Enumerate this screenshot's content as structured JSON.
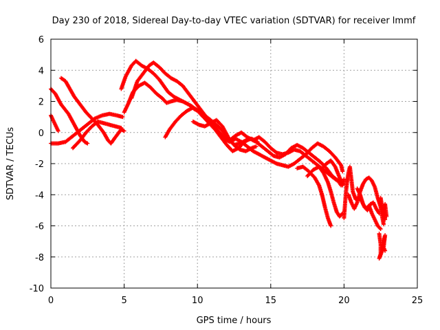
{
  "chart_data": {
    "type": "scatter",
    "title": "Day 230 of 2018, Sidereal Day-to-day VTEC variation (SDTVAR) for receiver lmmf",
    "xlabel": "GPS time / hours",
    "ylabel": "SDTVAR / TECUs",
    "xlim": [
      0,
      25
    ],
    "ylim": [
      -10,
      6
    ],
    "xticks": [
      0,
      5,
      10,
      15,
      20,
      25
    ],
    "yticks": [
      -10,
      -8,
      -6,
      -4,
      -2,
      0,
      2,
      4,
      6
    ],
    "xtick_labels": [
      "0",
      "5",
      "10",
      "15",
      "20",
      "25"
    ],
    "ytick_labels": [
      "-10",
      "-8",
      "-6",
      "-4",
      "-2",
      "0",
      "2",
      "4",
      "6"
    ],
    "grid": true,
    "marker": "+",
    "color": "#ff0000",
    "series": [
      {
        "name": "track-1",
        "points": [
          [
            0.0,
            2.8
          ],
          [
            0.3,
            2.5
          ],
          [
            0.7,
            1.8
          ],
          [
            1.2,
            1.2
          ],
          [
            1.6,
            0.5
          ],
          [
            2.0,
            -0.2
          ],
          [
            2.3,
            -0.6
          ],
          [
            2.5,
            -0.7
          ]
        ]
      },
      {
        "name": "track-2",
        "points": [
          [
            0.0,
            1.1
          ],
          [
            0.2,
            0.7
          ],
          [
            0.4,
            0.3
          ],
          [
            0.5,
            0.1
          ]
        ]
      },
      {
        "name": "track-3",
        "points": [
          [
            0.0,
            -0.7
          ],
          [
            0.5,
            -0.7
          ],
          [
            1.0,
            -0.6
          ],
          [
            1.4,
            -0.3
          ],
          [
            1.8,
            0.0
          ],
          [
            2.2,
            0.3
          ],
          [
            2.6,
            0.6
          ],
          [
            3.0,
            0.9
          ],
          [
            3.5,
            1.1
          ],
          [
            4.0,
            1.2
          ],
          [
            4.5,
            1.1
          ],
          [
            4.9,
            1.0
          ]
        ]
      },
      {
        "name": "track-4",
        "points": [
          [
            0.7,
            3.5
          ],
          [
            1.0,
            3.3
          ],
          [
            1.3,
            2.8
          ],
          [
            1.6,
            2.3
          ],
          [
            2.0,
            1.8
          ],
          [
            2.4,
            1.3
          ],
          [
            2.8,
            0.9
          ],
          [
            3.2,
            0.5
          ],
          [
            3.6,
            0.0
          ],
          [
            3.9,
            -0.5
          ],
          [
            4.1,
            -0.7
          ],
          [
            4.4,
            -0.3
          ],
          [
            4.8,
            0.2
          ],
          [
            5.0,
            0.1
          ]
        ]
      },
      {
        "name": "track-5",
        "points": [
          [
            1.5,
            -1.0
          ],
          [
            2.0,
            -0.5
          ],
          [
            2.4,
            0.0
          ],
          [
            2.8,
            0.4
          ],
          [
            3.2,
            0.7
          ],
          [
            3.6,
            0.6
          ],
          [
            4.0,
            0.5
          ],
          [
            4.4,
            0.4
          ],
          [
            4.8,
            0.3
          ]
        ]
      },
      {
        "name": "track-6",
        "points": [
          [
            4.8,
            2.8
          ],
          [
            5.1,
            3.6
          ],
          [
            5.5,
            4.3
          ],
          [
            5.8,
            4.6
          ],
          [
            6.2,
            4.3
          ],
          [
            6.6,
            4.1
          ],
          [
            7.0,
            3.8
          ],
          [
            7.4,
            3.4
          ],
          [
            7.7,
            3.0
          ],
          [
            8.0,
            2.6
          ],
          [
            8.4,
            2.3
          ],
          [
            8.8,
            2.1
          ],
          [
            9.2,
            1.9
          ],
          [
            9.6,
            1.7
          ],
          [
            10.0,
            1.4
          ],
          [
            10.4,
            1.0
          ],
          [
            10.8,
            0.6
          ],
          [
            11.2,
            0.2
          ],
          [
            11.6,
            -0.3
          ],
          [
            12.0,
            -0.8
          ],
          [
            12.4,
            -1.2
          ],
          [
            12.8,
            -1.0
          ],
          [
            13.2,
            -0.6
          ],
          [
            13.6,
            -0.4
          ],
          [
            14.0,
            -0.6
          ],
          [
            14.4,
            -0.9
          ],
          [
            14.8,
            -1.2
          ],
          [
            15.2,
            -1.5
          ],
          [
            15.6,
            -1.6
          ],
          [
            16.0,
            -1.4
          ],
          [
            16.4,
            -1.0
          ],
          [
            16.8,
            -0.8
          ],
          [
            17.2,
            -1.0
          ],
          [
            17.6,
            -1.3
          ],
          [
            18.0,
            -1.6
          ],
          [
            18.4,
            -1.9
          ],
          [
            18.8,
            -2.3
          ],
          [
            19.2,
            -2.8
          ],
          [
            19.6,
            -3.1
          ],
          [
            19.8,
            -3.4
          ]
        ]
      },
      {
        "name": "track-7",
        "points": [
          [
            5.0,
            1.3
          ],
          [
            5.3,
            1.9
          ],
          [
            5.6,
            2.6
          ],
          [
            6.0,
            3.0
          ],
          [
            6.4,
            3.2
          ],
          [
            6.8,
            2.9
          ],
          [
            7.2,
            2.5
          ],
          [
            7.6,
            2.2
          ],
          [
            7.9,
            1.9
          ],
          [
            8.2,
            2.0
          ],
          [
            8.6,
            2.1
          ],
          [
            9.0,
            2.0
          ],
          [
            9.4,
            1.8
          ],
          [
            9.8,
            1.5
          ],
          [
            10.2,
            1.3
          ],
          [
            10.6,
            1.0
          ],
          [
            11.0,
            0.6
          ],
          [
            11.4,
            0.1
          ],
          [
            11.8,
            -0.3
          ],
          [
            12.2,
            -0.5
          ],
          [
            12.6,
            -0.2
          ],
          [
            13.0,
            0.0
          ],
          [
            13.4,
            -0.3
          ],
          [
            13.8,
            -0.5
          ],
          [
            14.2,
            -0.3
          ],
          [
            14.6,
            -0.6
          ],
          [
            15.0,
            -1.0
          ],
          [
            15.4,
            -1.3
          ],
          [
            15.8,
            -1.4
          ],
          [
            16.2,
            -1.3
          ],
          [
            16.6,
            -1.1
          ],
          [
            17.0,
            -1.2
          ],
          [
            17.4,
            -1.5
          ],
          [
            17.8,
            -1.8
          ],
          [
            18.2,
            -2.1
          ],
          [
            18.6,
            -2.4
          ],
          [
            19.0,
            -2.7
          ],
          [
            19.4,
            -3.0
          ],
          [
            19.7,
            -3.2
          ]
        ]
      },
      {
        "name": "track-8",
        "points": [
          [
            5.5,
            2.2
          ],
          [
            5.9,
            3.3
          ],
          [
            6.3,
            3.8
          ],
          [
            6.7,
            4.3
          ],
          [
            7.0,
            4.5
          ],
          [
            7.4,
            4.2
          ],
          [
            7.8,
            3.8
          ],
          [
            8.2,
            3.5
          ],
          [
            8.6,
            3.3
          ],
          [
            9.0,
            3.0
          ],
          [
            9.4,
            2.5
          ],
          [
            9.8,
            2.0
          ],
          [
            10.2,
            1.5
          ],
          [
            10.6,
            1.0
          ],
          [
            11.0,
            0.5
          ],
          [
            11.4,
            0.0
          ],
          [
            11.8,
            -0.4
          ],
          [
            12.2,
            -0.6
          ],
          [
            12.6,
            -0.4
          ],
          [
            13.0,
            -0.6
          ],
          [
            13.4,
            -0.9
          ],
          [
            13.8,
            -1.2
          ],
          [
            14.2,
            -1.4
          ],
          [
            14.6,
            -1.6
          ],
          [
            15.0,
            -1.8
          ],
          [
            15.4,
            -2.0
          ],
          [
            15.8,
            -2.1
          ],
          [
            16.2,
            -2.2
          ],
          [
            16.6,
            -2.0
          ],
          [
            17.0,
            -1.7
          ],
          [
            17.4,
            -1.4
          ],
          [
            17.8,
            -1.0
          ],
          [
            18.2,
            -0.7
          ],
          [
            18.6,
            -0.9
          ],
          [
            19.0,
            -1.2
          ],
          [
            19.4,
            -1.6
          ],
          [
            19.8,
            -2.1
          ],
          [
            19.9,
            -2.5
          ]
        ]
      },
      {
        "name": "track-9",
        "points": [
          [
            7.8,
            -0.3
          ],
          [
            8.1,
            0.2
          ],
          [
            8.5,
            0.7
          ],
          [
            8.9,
            1.1
          ],
          [
            9.3,
            1.4
          ],
          [
            9.7,
            1.6
          ],
          [
            10.1,
            1.4
          ],
          [
            10.5,
            1.1
          ],
          [
            10.9,
            0.8
          ],
          [
            11.3,
            0.5
          ],
          [
            11.7,
            0.1
          ],
          [
            12.1,
            -0.4
          ],
          [
            12.5,
            -0.8
          ],
          [
            12.9,
            -1.1
          ],
          [
            13.3,
            -1.2
          ],
          [
            13.7,
            -1.0
          ],
          [
            14.0,
            -0.9
          ]
        ]
      },
      {
        "name": "track-10",
        "points": [
          [
            9.7,
            0.7
          ],
          [
            10.1,
            0.5
          ],
          [
            10.5,
            0.4
          ],
          [
            10.9,
            0.6
          ],
          [
            11.3,
            0.8
          ],
          [
            11.7,
            0.4
          ],
          [
            12.1,
            -0.3
          ],
          [
            12.5,
            -0.8
          ],
          [
            12.9,
            -0.7
          ],
          [
            13.3,
            -0.5
          ],
          [
            13.7,
            -0.4
          ],
          [
            14.1,
            -0.6
          ]
        ]
      },
      {
        "name": "track-11",
        "points": [
          [
            16.8,
            -2.3
          ],
          [
            17.2,
            -2.2
          ],
          [
            17.6,
            -2.5
          ],
          [
            18.0,
            -2.9
          ],
          [
            18.3,
            -3.4
          ],
          [
            18.5,
            -4.0
          ],
          [
            18.7,
            -4.8
          ],
          [
            18.9,
            -5.5
          ],
          [
            19.1,
            -6.0
          ]
        ]
      },
      {
        "name": "track-12",
        "points": [
          [
            17.5,
            -2.8
          ],
          [
            17.9,
            -2.4
          ],
          [
            18.3,
            -2.2
          ],
          [
            18.6,
            -2.6
          ],
          [
            18.9,
            -3.2
          ],
          [
            19.1,
            -3.8
          ],
          [
            19.3,
            -4.5
          ],
          [
            19.5,
            -5.1
          ],
          [
            19.7,
            -5.4
          ],
          [
            19.9,
            -5.2
          ]
        ]
      },
      {
        "name": "track-13",
        "points": [
          [
            18.5,
            -2.3
          ],
          [
            18.8,
            -2.0
          ],
          [
            19.1,
            -1.8
          ],
          [
            19.4,
            -2.2
          ],
          [
            19.7,
            -2.9
          ],
          [
            19.9,
            -3.4
          ],
          [
            20.0,
            -3.0
          ]
        ]
      },
      {
        "name": "track-14",
        "points": [
          [
            20.0,
            -5.5
          ],
          [
            20.1,
            -4.2
          ],
          [
            20.2,
            -3.2
          ],
          [
            20.3,
            -2.6
          ],
          [
            20.4,
            -2.2
          ],
          [
            20.5,
            -3.0
          ],
          [
            20.6,
            -3.8
          ],
          [
            20.8,
            -4.3
          ],
          [
            21.0,
            -4.2
          ],
          [
            21.2,
            -4.4
          ],
          [
            21.4,
            -4.8
          ],
          [
            21.6,
            -5.0
          ],
          [
            21.8,
            -4.6
          ],
          [
            22.0,
            -4.5
          ],
          [
            22.2,
            -4.9
          ],
          [
            22.4,
            -5.2
          ]
        ]
      },
      {
        "name": "track-15",
        "points": [
          [
            20.3,
            -4.0
          ],
          [
            20.5,
            -4.5
          ],
          [
            20.7,
            -4.9
          ],
          [
            20.9,
            -4.5
          ],
          [
            21.1,
            -3.8
          ],
          [
            21.3,
            -3.3
          ],
          [
            21.5,
            -3.0
          ],
          [
            21.7,
            -2.9
          ],
          [
            21.9,
            -3.1
          ],
          [
            22.1,
            -3.5
          ],
          [
            22.3,
            -4.2
          ],
          [
            22.5,
            -4.8
          ],
          [
            22.6,
            -5.4
          ],
          [
            22.7,
            -5.9
          ]
        ]
      },
      {
        "name": "track-16",
        "points": [
          [
            20.9,
            -3.6
          ],
          [
            21.1,
            -4.0
          ],
          [
            21.3,
            -4.6
          ],
          [
            21.5,
            -4.9
          ],
          [
            21.7,
            -4.7
          ],
          [
            21.9,
            -5.2
          ],
          [
            22.1,
            -5.6
          ],
          [
            22.3,
            -6.0
          ],
          [
            22.5,
            -6.2
          ]
        ]
      },
      {
        "name": "track-17",
        "points": [
          [
            22.4,
            -6.5
          ],
          [
            22.5,
            -7.2
          ],
          [
            22.5,
            -7.8
          ],
          [
            22.4,
            -8.1
          ],
          [
            22.6,
            -7.6
          ],
          [
            22.7,
            -7.0
          ],
          [
            22.8,
            -6.6
          ],
          [
            22.7,
            -7.4
          ],
          [
            22.8,
            -7.6
          ]
        ]
      },
      {
        "name": "track-18",
        "points": [
          [
            22.5,
            -4.2
          ],
          [
            22.6,
            -4.8
          ],
          [
            22.7,
            -5.4
          ],
          [
            22.8,
            -5.6
          ],
          [
            22.7,
            -5.0
          ],
          [
            22.8,
            -4.6
          ],
          [
            22.9,
            -5.4
          ]
        ]
      }
    ]
  }
}
